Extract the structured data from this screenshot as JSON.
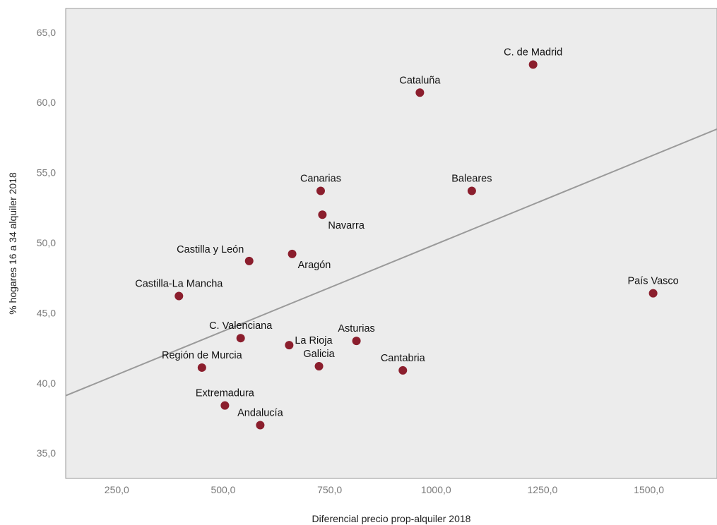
{
  "chart_data": {
    "type": "scatter",
    "xlabel": "Diferencial precio prop-alquiler 2018",
    "ylabel": "% hogares 16 a 34 alquiler 2018",
    "xlim": [
      130,
      1660
    ],
    "ylim": [
      33.2,
      66.7
    ],
    "xticks": [
      250,
      500,
      750,
      1000,
      1250,
      1500
    ],
    "xtick_labels": [
      "250,0",
      "500,0",
      "750,0",
      "1000,0",
      "1250,0",
      "1500,0"
    ],
    "yticks": [
      35,
      40,
      45,
      50,
      55,
      60,
      65
    ],
    "ytick_labels": [
      "35,0",
      "40,0",
      "45,0",
      "50,0",
      "55,0",
      "60,0",
      "65,0"
    ],
    "grid": false,
    "point_color": "#8b1e2d",
    "plot_background": "#ececec",
    "trendline_color": "#9a9a9a",
    "trendline": {
      "x": [
        130,
        1660
      ],
      "y": [
        39.1,
        58.1
      ]
    },
    "points": [
      {
        "label": "C. de Madrid",
        "x": 1228,
        "y": 62.7,
        "label_pos": "above"
      },
      {
        "label": "Cataluña",
        "x": 962,
        "y": 60.7,
        "label_pos": "above"
      },
      {
        "label": "Canarias",
        "x": 729,
        "y": 53.7,
        "label_pos": "above"
      },
      {
        "label": "Baleares",
        "x": 1084,
        "y": 53.7,
        "label_pos": "above"
      },
      {
        "label": "Navarra",
        "x": 733,
        "y": 52.0,
        "label_pos": "below-right"
      },
      {
        "label": "Aragón",
        "x": 662,
        "y": 49.2,
        "label_pos": "below-right"
      },
      {
        "label": "Castilla y León",
        "x": 561,
        "y": 48.7,
        "label_pos": "above-left"
      },
      {
        "label": "País Vasco",
        "x": 1510,
        "y": 46.4,
        "label_pos": "above"
      },
      {
        "label": "Castilla-La Mancha",
        "x": 396,
        "y": 46.2,
        "label_pos": "above"
      },
      {
        "label": "C. Valenciana",
        "x": 541,
        "y": 43.2,
        "label_pos": "above"
      },
      {
        "label": "Asturias",
        "x": 813,
        "y": 43.0,
        "label_pos": "above"
      },
      {
        "label": "La Rioja",
        "x": 655,
        "y": 42.7,
        "label_pos": "right"
      },
      {
        "label": "Galicia",
        "x": 725,
        "y": 41.2,
        "label_pos": "above"
      },
      {
        "label": "Región de Murcia",
        "x": 450,
        "y": 41.1,
        "label_pos": "above"
      },
      {
        "label": "Cantabria",
        "x": 922,
        "y": 40.9,
        "label_pos": "above"
      },
      {
        "label": "Extremadura",
        "x": 504,
        "y": 38.4,
        "label_pos": "above"
      },
      {
        "label": "Andalucía",
        "x": 587,
        "y": 37.0,
        "label_pos": "above"
      }
    ]
  }
}
